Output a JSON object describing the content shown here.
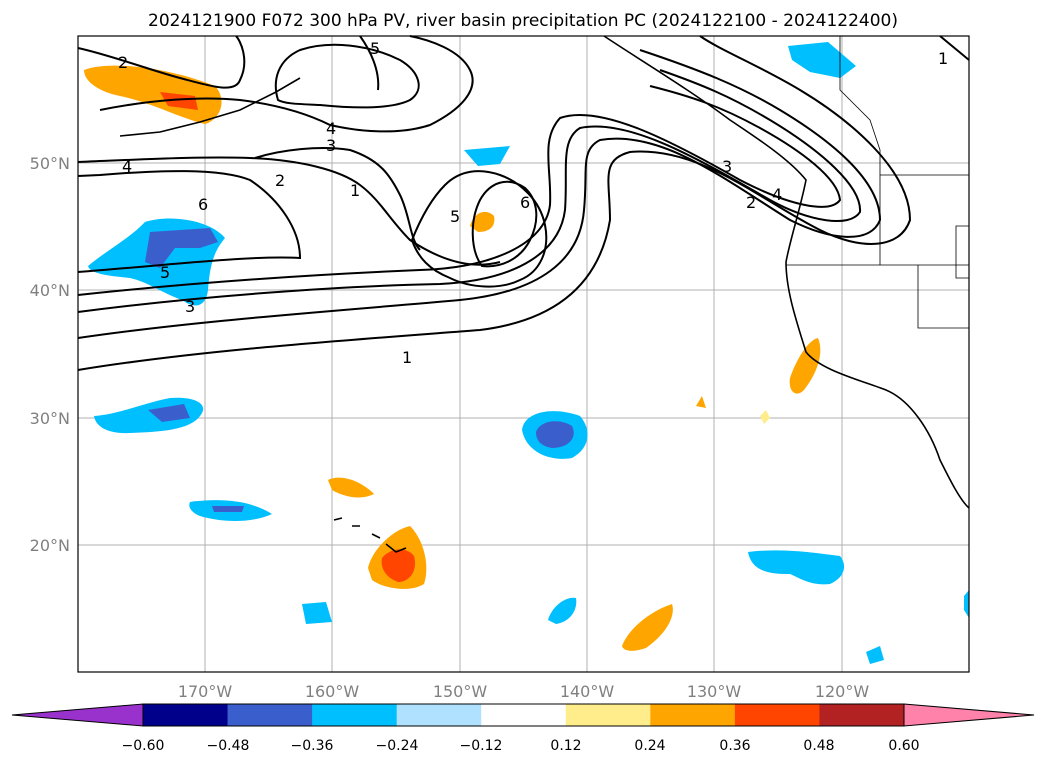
{
  "chart_data": {
    "type": "map-contour",
    "title": "2024121900 F072 300 hPa PV, river basin precipitation PC (2024122100 - 2024122400)",
    "map": {
      "lon_range": [
        -180,
        -110
      ],
      "lat_range": [
        10,
        60
      ],
      "gridlines": true,
      "lon_ticks": [
        {
          "lon": -170,
          "label": "170°W"
        },
        {
          "lon": -160,
          "label": "160°W"
        },
        {
          "lon": -150,
          "label": "150°W"
        },
        {
          "lon": -140,
          "label": "140°W"
        },
        {
          "lon": -130,
          "label": "130°W"
        },
        {
          "lon": -120,
          "label": "120°W"
        }
      ],
      "lat_ticks": [
        {
          "lat": 20,
          "label": "20°N"
        },
        {
          "lat": 30,
          "label": "30°N"
        },
        {
          "lat": 40,
          "label": "40°N"
        },
        {
          "lat": 50,
          "label": "50°N"
        }
      ]
    },
    "contour_labels": [
      "1",
      "2",
      "3",
      "4",
      "5",
      "6",
      "4",
      "3",
      "2",
      "1",
      "2",
      "3",
      "4",
      "5",
      "6",
      "1",
      "5",
      "3",
      "2",
      "1"
    ],
    "colorbar": {
      "extend": "both",
      "levels": [
        "−0.60",
        "−0.48",
        "−0.36",
        "−0.24",
        "−0.12",
        "0.12",
        "0.24",
        "0.36",
        "0.48",
        "0.60"
      ],
      "colors": [
        "#9932cc",
        "#00008b",
        "#3a5fcd",
        "#00bfff",
        "#b0e2ff",
        "#ffffff",
        "#ffec8b",
        "#ffa500",
        "#ff4500",
        "#b22222",
        "#ff82ab"
      ]
    }
  }
}
